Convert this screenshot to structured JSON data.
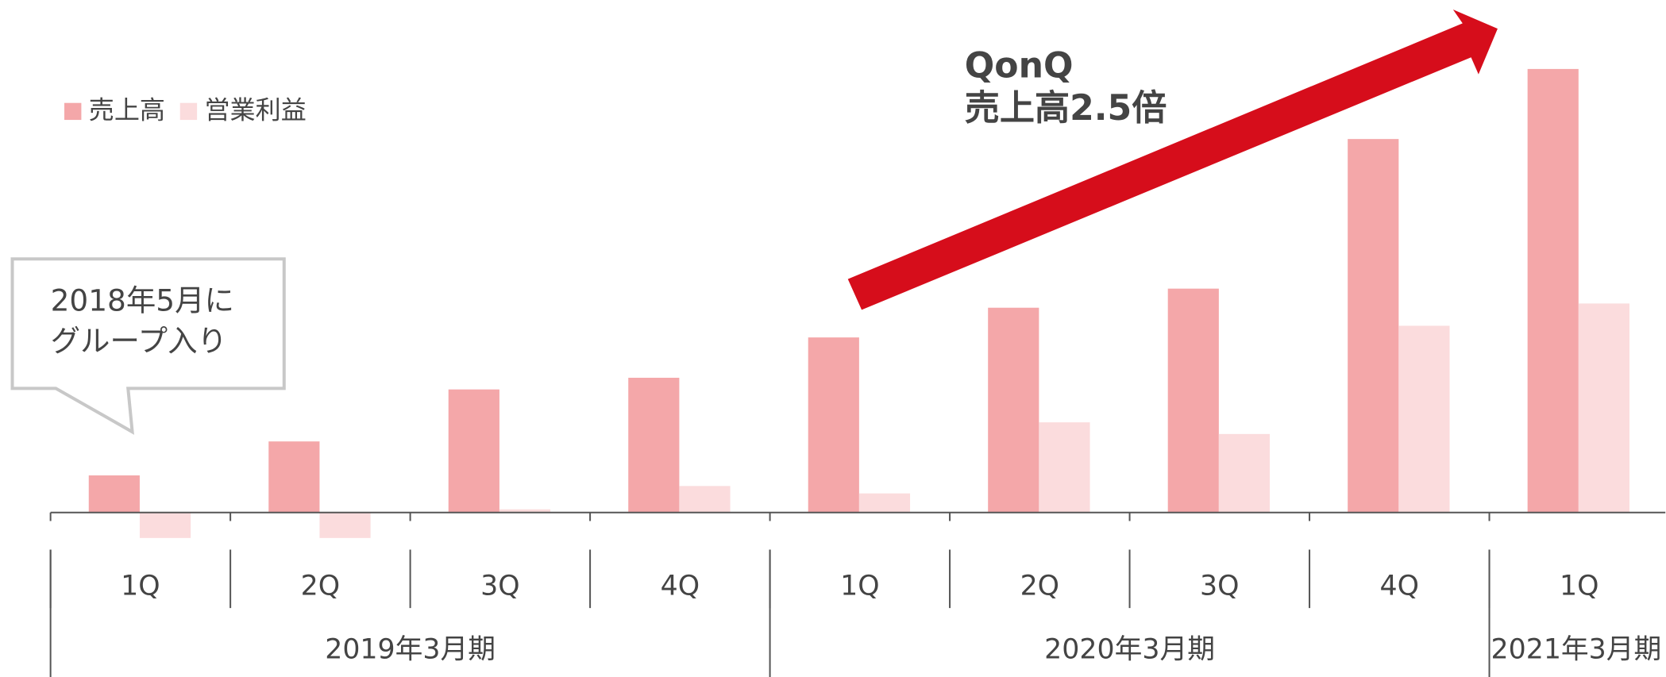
{
  "chart_data": {
    "type": "bar",
    "categories": [
      "1Q",
      "2Q",
      "3Q",
      "4Q",
      "1Q",
      "2Q",
      "3Q",
      "4Q",
      "1Q"
    ],
    "x_groups": [
      {
        "label": "2019年3月期",
        "count": 4
      },
      {
        "label": "2020年3月期",
        "count": 4
      },
      {
        "label": "2021年3月期",
        "count": 1
      }
    ],
    "series": [
      {
        "name": "売上高",
        "color": "#f4a7a9",
        "values": [
          35,
          67,
          116,
          127,
          165,
          193,
          211,
          352,
          418
        ]
      },
      {
        "name": "営業利益",
        "color": "#fbdcdd",
        "values": [
          -24,
          -24,
          3,
          25,
          18,
          85,
          74,
          176,
          197
        ]
      }
    ],
    "ylim": [
      -30,
      430
    ],
    "annotations": {
      "callout": [
        "2018年5月に",
        "グループ入り"
      ],
      "arrow": [
        "QonQ",
        "売上高2.5倍"
      ]
    }
  }
}
